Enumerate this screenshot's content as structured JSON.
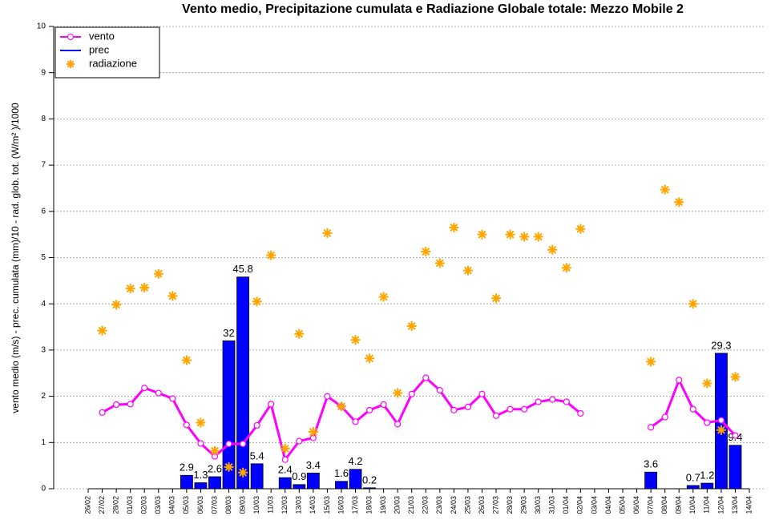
{
  "chart_data": {
    "type": "combo",
    "title": "Vento medio, Precipitazione cumulata e Radiazione Globale totale: Mezzo Mobile 2",
    "ylabel": "vento medio (m/s) - prec. cumulata (mm)/10 - rad. glob. tot. (W/m² )/1000",
    "categories": [
      "26/02",
      "27/02",
      "28/02",
      "01/03",
      "02/03",
      "03/03",
      "04/03",
      "05/03",
      "06/03",
      "07/03",
      "08/03",
      "09/03",
      "10/03",
      "11/03",
      "12/03",
      "13/03",
      "14/03",
      "15/03",
      "16/03",
      "17/03",
      "18/03",
      "19/03",
      "20/03",
      "21/03",
      "22/03",
      "23/03",
      "24/03",
      "25/03",
      "26/03",
      "27/03",
      "28/03",
      "29/03",
      "30/03",
      "31/03",
      "01/04",
      "02/04",
      "03/04",
      "04/04",
      "05/04",
      "06/04",
      "07/04",
      "08/04",
      "09/04",
      "10/04",
      "11/04",
      "12/04",
      "13/04",
      "14/04"
    ],
    "series": [
      {
        "name": "vento",
        "type": "line",
        "color": "#ff00ff",
        "values": [
          null,
          1.65,
          1.82,
          1.83,
          2.18,
          2.07,
          1.95,
          1.38,
          0.98,
          0.7,
          0.97,
          0.97,
          1.37,
          1.83,
          0.63,
          1.03,
          1.1,
          2.0,
          1.78,
          1.45,
          1.7,
          1.82,
          1.4,
          2.05,
          2.4,
          2.13,
          1.7,
          1.77,
          2.05,
          1.58,
          1.72,
          1.72,
          1.88,
          1.93,
          1.88,
          1.63,
          null,
          null,
          null,
          null,
          1.33,
          1.55,
          2.35,
          1.72,
          1.43,
          1.48,
          1.15,
          null
        ]
      },
      {
        "name": "prec",
        "type": "bar",
        "color": "#0000ff",
        "values": [
          null,
          null,
          null,
          null,
          null,
          null,
          null,
          0.29,
          0.13,
          0.26,
          3.2,
          4.58,
          0.54,
          null,
          0.24,
          0.09,
          0.34,
          null,
          0.16,
          0.42,
          0.02,
          null,
          null,
          null,
          null,
          null,
          null,
          null,
          null,
          null,
          null,
          null,
          null,
          null,
          null,
          null,
          null,
          null,
          null,
          null,
          0.36,
          null,
          null,
          0.07,
          0.12,
          2.93,
          0.94,
          null
        ],
        "value_labels": [
          null,
          null,
          null,
          null,
          null,
          null,
          null,
          "2.9",
          "1.3",
          "2.6",
          "32",
          "45.8",
          "5.4",
          null,
          "2.4",
          "0.9",
          "3.4",
          null,
          "1.6",
          "4.2",
          "0.2",
          null,
          null,
          null,
          null,
          null,
          null,
          null,
          null,
          null,
          null,
          null,
          null,
          null,
          null,
          null,
          null,
          null,
          null,
          null,
          "3.6",
          null,
          null,
          "0.7",
          "1.2",
          "29.3",
          "9.4",
          null
        ]
      },
      {
        "name": "radiazione",
        "type": "scatter",
        "color": "#ffa500",
        "values": [
          null,
          3.42,
          3.98,
          4.33,
          4.35,
          4.65,
          4.17,
          2.78,
          1.43,
          0.82,
          0.47,
          0.35,
          4.05,
          5.05,
          0.87,
          3.35,
          1.23,
          5.53,
          1.78,
          3.22,
          2.82,
          4.15,
          2.07,
          3.52,
          5.13,
          4.88,
          5.65,
          4.72,
          5.5,
          4.12,
          5.5,
          5.45,
          5.45,
          5.17,
          4.78,
          5.62,
          null,
          null,
          null,
          null,
          2.75,
          6.47,
          6.2,
          4.0,
          2.28,
          1.27,
          2.42,
          null
        ]
      }
    ],
    "ylim": [
      0,
      10
    ],
    "yticks": [
      0,
      1,
      2,
      3,
      4,
      5,
      6,
      7,
      8,
      9,
      10
    ],
    "grid": true,
    "legend": "top-left"
  }
}
